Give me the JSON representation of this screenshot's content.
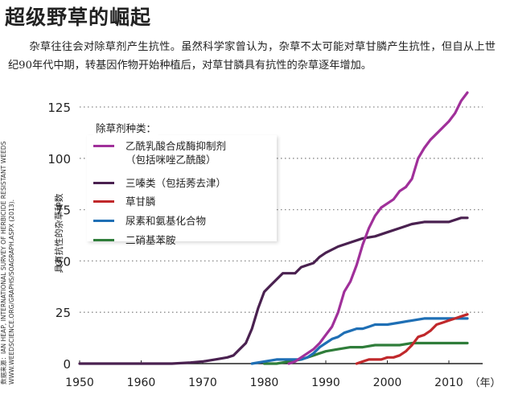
{
  "title": "超级野草的崛起",
  "intro": "杂草往往会对除草剂产生抗性。虽然科学家曾认为，杂草不太可能对草甘膦产生抗性，但自从上世纪90年代中期，转基因作物开始种植后，对草甘膦具有抗性的杂草逐年增加。",
  "source": "数据来源：IAN HEAP, INTERNATIONAL SURVEY OF HERBICIDE RESISTANT WEEDS WWW.WEEDSCIENCE.ORG/GRAPHS/SOAGRAPH.ASPX (2013).",
  "chart_data": {
    "type": "line",
    "title": "",
    "ylabel": "具有抗性的杂草种数",
    "xlabel": "（年）",
    "xlim": [
      1950,
      2014
    ],
    "ylim": [
      0,
      135
    ],
    "x_ticks": [
      1950,
      1960,
      1970,
      1980,
      1990,
      2000,
      2010
    ],
    "y_ticks": [
      0,
      25,
      50,
      75,
      100,
      125
    ],
    "grid": "horizontal-dotted",
    "legend_title": "除草剂种类：",
    "legend_position": "top-left",
    "series": [
      {
        "name": "乙酰乳酸合成酶抑制剂",
        "name_line2": "（包括咪唑乙酰酸）",
        "color": "#a0309a",
        "x": [
          1984,
          1985,
          1986,
          1987,
          1988,
          1989,
          1990,
          1991,
          1992,
          1993,
          1994,
          1995,
          1996,
          1997,
          1998,
          1999,
          2000,
          2001,
          2002,
          2003,
          2004,
          2005,
          2006,
          2007,
          2008,
          2009,
          2010,
          2011,
          2012,
          2013
        ],
        "y": [
          0,
          1,
          3,
          5,
          7,
          10,
          14,
          18,
          25,
          35,
          40,
          48,
          58,
          66,
          72,
          76,
          78,
          80,
          84,
          86,
          90,
          100,
          105,
          109,
          112,
          115,
          118,
          122,
          128,
          132
        ]
      },
      {
        "name": "三嗪类（包括莠去津）",
        "color": "#4a2150",
        "x": [
          1950,
          1965,
          1968,
          1970,
          1972,
          1974,
          1975,
          1976,
          1977,
          1978,
          1979,
          1980,
          1981,
          1982,
          1983,
          1984,
          1985,
          1986,
          1987,
          1988,
          1989,
          1990,
          1992,
          1994,
          1996,
          1998,
          2000,
          2002,
          2004,
          2006,
          2008,
          2010,
          2012,
          2013
        ],
        "y": [
          0,
          0,
          0.5,
          1,
          2,
          3,
          4,
          7,
          10,
          17,
          27,
          35,
          38,
          41,
          44,
          44,
          44,
          47,
          48,
          49,
          52,
          54,
          57,
          59,
          61,
          62,
          64,
          66,
          68,
          69,
          69,
          69,
          71,
          71
        ]
      },
      {
        "name": "草甘膦",
        "color": "#c0282b",
        "x": [
          1995,
          1996,
          1997,
          1998,
          1999,
          2000,
          2001,
          2002,
          2003,
          2004,
          2005,
          2006,
          2007,
          2008,
          2009,
          2010,
          2011,
          2012,
          2013
        ],
        "y": [
          0,
          1,
          2,
          2,
          2,
          3,
          3,
          4,
          6,
          9,
          13,
          14,
          16,
          19,
          20,
          21,
          22,
          23,
          24
        ]
      },
      {
        "name": "尿素和氨基化合物",
        "color": "#1f6fb5",
        "x": [
          1978,
          1980,
          1982,
          1984,
          1985,
          1986,
          1987,
          1988,
          1989,
          1990,
          1991,
          1992,
          1993,
          1994,
          1995,
          1996,
          1997,
          1998,
          2000,
          2002,
          2004,
          2006,
          2008,
          2010,
          2012,
          2013
        ],
        "y": [
          0,
          1,
          2,
          2,
          2,
          2,
          3,
          5,
          8,
          10,
          12,
          13,
          15,
          16,
          17,
          17,
          18,
          19,
          19,
          20,
          21,
          22,
          22,
          22,
          22,
          22
        ]
      },
      {
        "name": "二硝基苯胺",
        "color": "#2f7d3a",
        "x": [
          1980,
          1982,
          1984,
          1986,
          1988,
          1989,
          1990,
          1992,
          1994,
          1996,
          1998,
          2000,
          2002,
          2004,
          2006,
          2008,
          2010,
          2012,
          2013
        ],
        "y": [
          0,
          0,
          1,
          2,
          4,
          5,
          6,
          7,
          8,
          8,
          9,
          9,
          9,
          10,
          10,
          10,
          10,
          10,
          10
        ]
      }
    ]
  }
}
